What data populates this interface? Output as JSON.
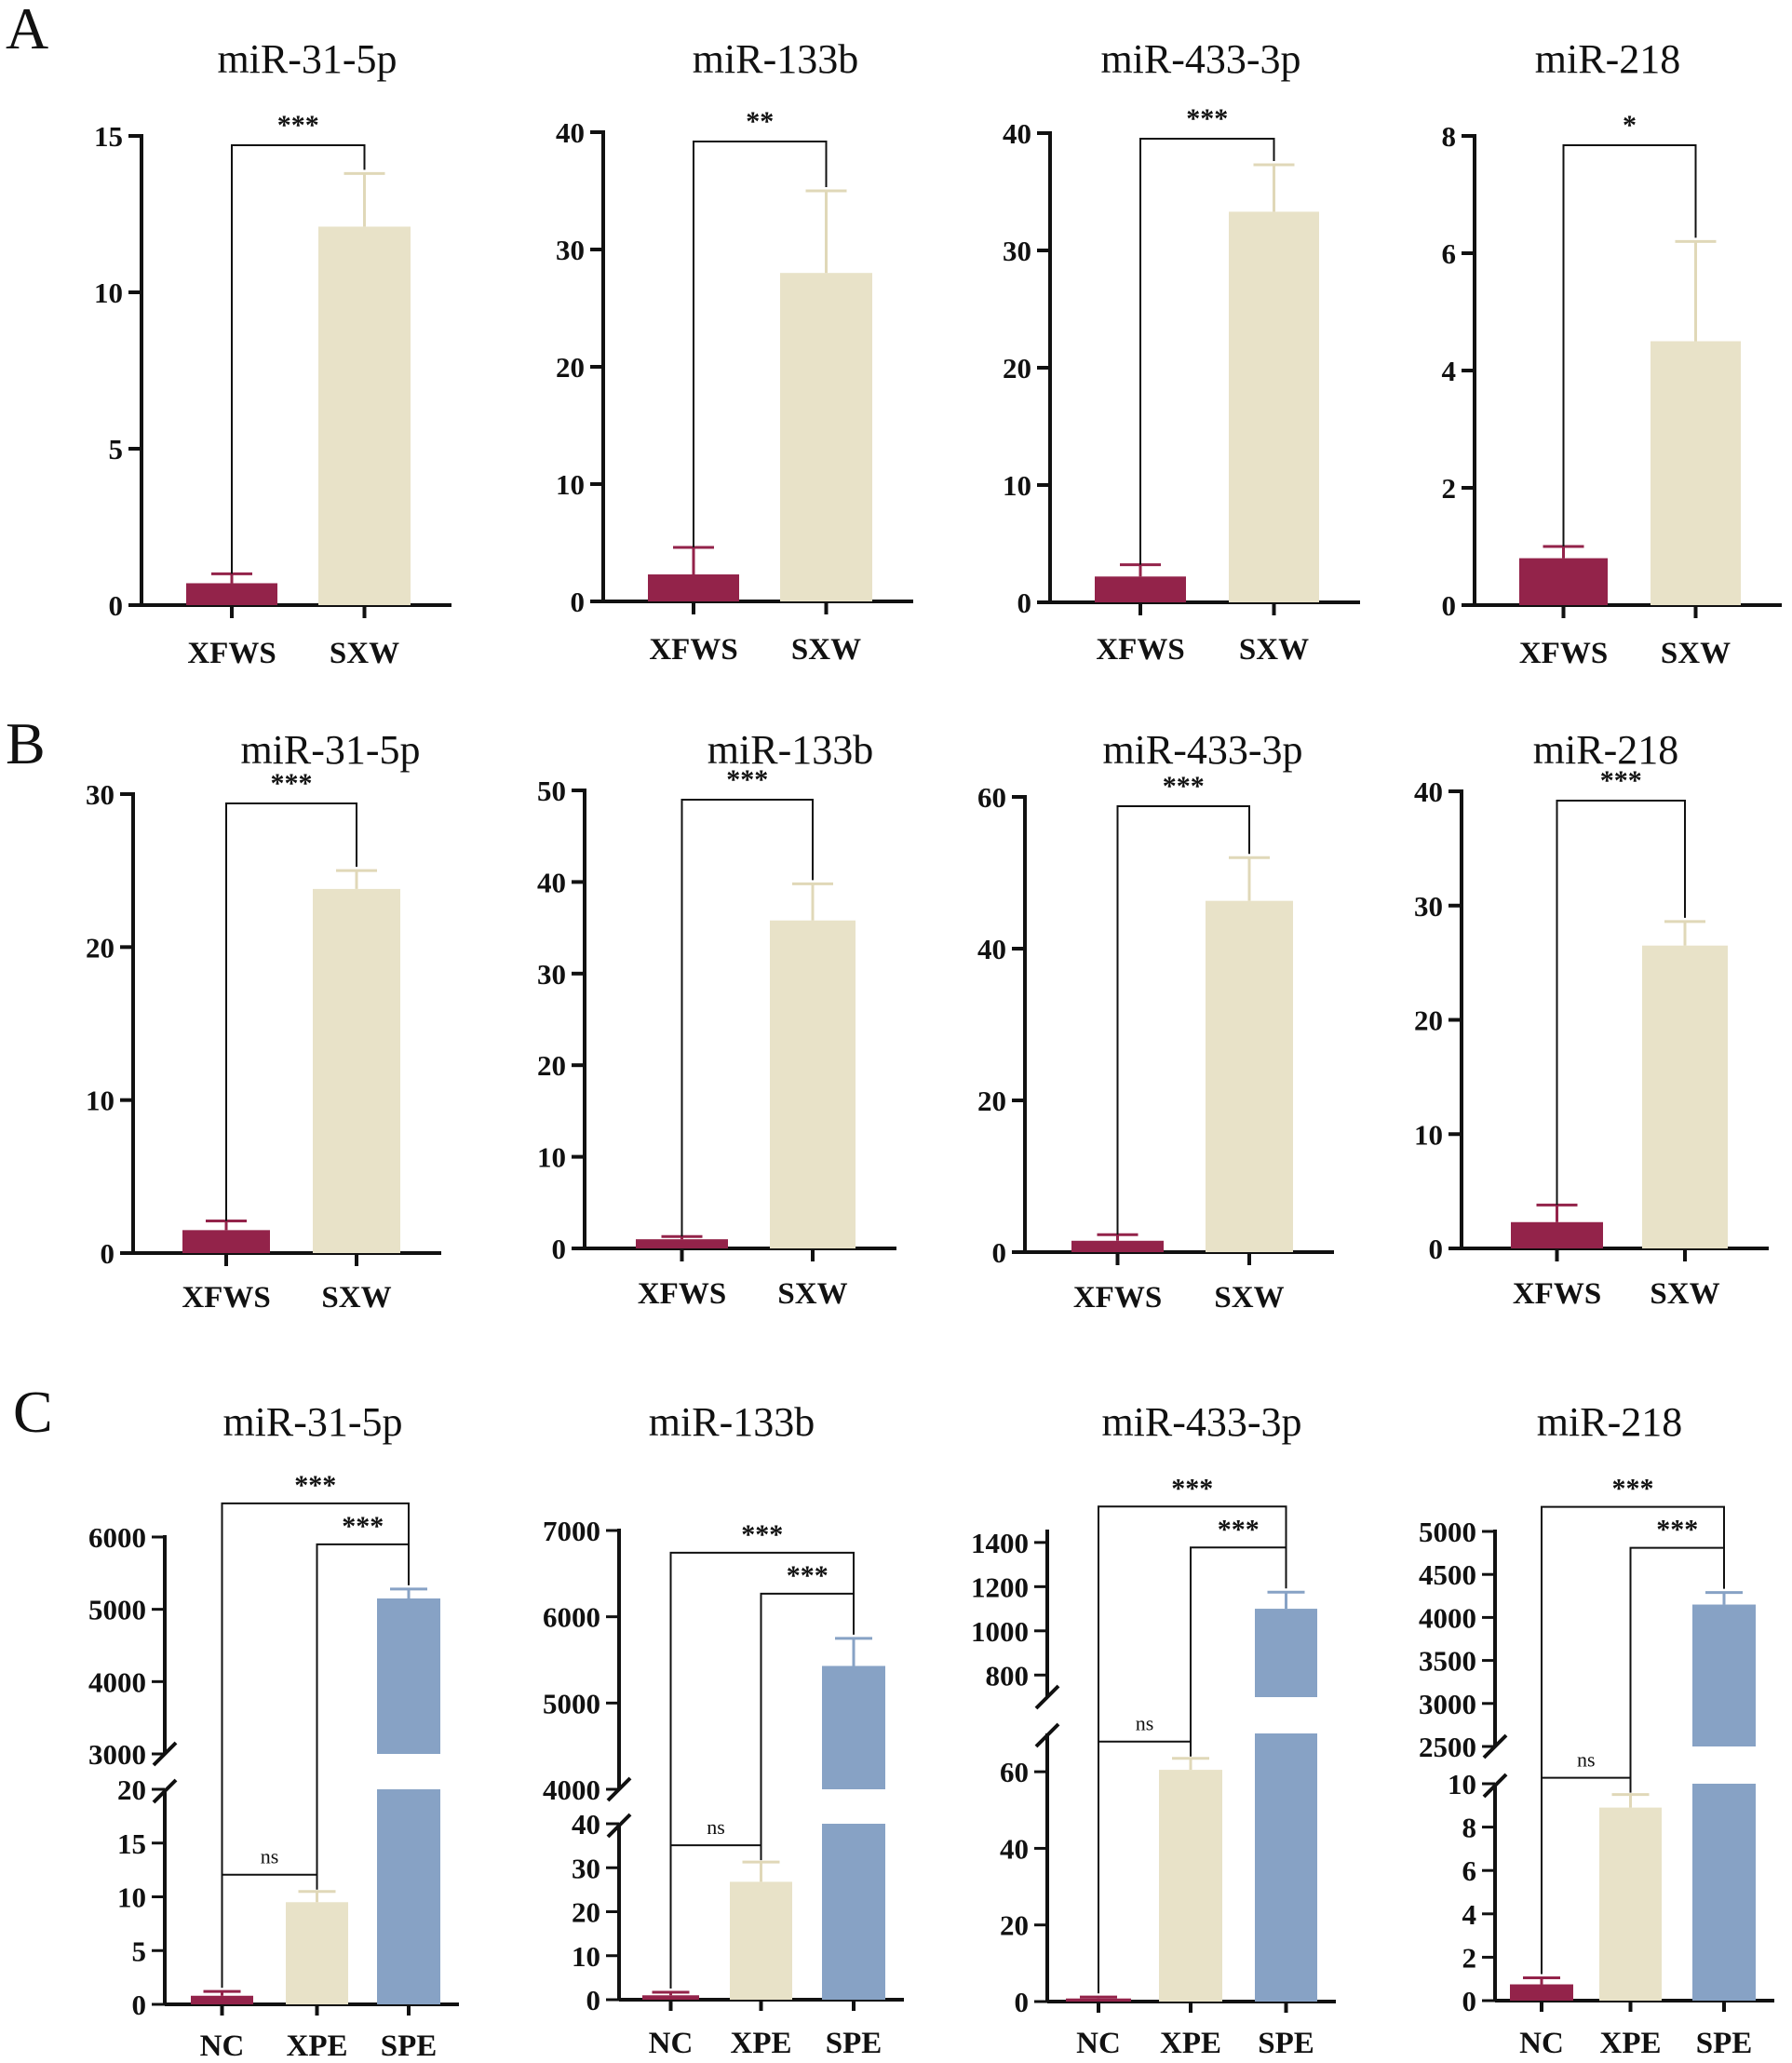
{
  "figure": {
    "panel_labels": [
      "A",
      "B",
      "C"
    ],
    "colors": {
      "XFWS": "#93234a",
      "SXW": "#e8e2c8",
      "NC": "#93234a",
      "XPE": "#e8e2c8",
      "SPE": "#87a2c5",
      "axis": "#111111",
      "err_dark": "#93234a",
      "err_light": "#e0d8b8",
      "err_blue": "#87a2c5"
    }
  },
  "chart_data": [
    {
      "panel": "A",
      "type": "bar",
      "title": "miR-31-5p",
      "categories": [
        "XFWS",
        "SXW"
      ],
      "values": [
        0.7,
        12.1
      ],
      "errors": [
        0.3,
        1.7
      ],
      "ylim": [
        0,
        15
      ],
      "yticks": [
        0,
        5,
        10,
        15
      ],
      "significance": [
        {
          "pair": [
            0,
            1
          ],
          "label": "***"
        }
      ]
    },
    {
      "panel": "A",
      "type": "bar",
      "title": "miR-133b",
      "categories": [
        "XFWS",
        "SXW"
      ],
      "values": [
        2.3,
        28.0
      ],
      "errors": [
        2.3,
        7.0
      ],
      "ylim": [
        0,
        40
      ],
      "yticks": [
        0,
        10,
        20,
        30,
        40
      ],
      "significance": [
        {
          "pair": [
            0,
            1
          ],
          "label": "**"
        }
      ]
    },
    {
      "panel": "A",
      "type": "bar",
      "title": "miR-433-3p",
      "categories": [
        "XFWS",
        "SXW"
      ],
      "values": [
        2.2,
        33.3
      ],
      "errors": [
        1.0,
        4.0
      ],
      "ylim": [
        0,
        40
      ],
      "yticks": [
        0,
        10,
        20,
        30,
        40
      ],
      "significance": [
        {
          "pair": [
            0,
            1
          ],
          "label": "***"
        }
      ]
    },
    {
      "panel": "A",
      "type": "bar",
      "title": "miR-218",
      "categories": [
        "XFWS",
        "SXW"
      ],
      "values": [
        0.8,
        4.5
      ],
      "errors": [
        0.2,
        1.7
      ],
      "ylim": [
        0,
        8
      ],
      "yticks": [
        0,
        2,
        4,
        6,
        8
      ],
      "significance": [
        {
          "pair": [
            0,
            1
          ],
          "label": "*"
        }
      ]
    },
    {
      "panel": "B",
      "type": "bar",
      "title": "miR-31-5p",
      "categories": [
        "XFWS",
        "SXW"
      ],
      "values": [
        1.5,
        23.8
      ],
      "errors": [
        0.6,
        1.2
      ],
      "ylim": [
        0,
        30
      ],
      "yticks": [
        0,
        10,
        20,
        30
      ],
      "significance": [
        {
          "pair": [
            0,
            1
          ],
          "label": "***"
        }
      ]
    },
    {
      "panel": "B",
      "type": "bar",
      "title": "miR-133b",
      "categories": [
        "XFWS",
        "SXW"
      ],
      "values": [
        1.0,
        35.8
      ],
      "errors": [
        0.3,
        4.0
      ],
      "ylim": [
        0,
        50
      ],
      "yticks": [
        0,
        10,
        20,
        30,
        40,
        50
      ],
      "significance": [
        {
          "pair": [
            0,
            1
          ],
          "label": "***"
        }
      ]
    },
    {
      "panel": "B",
      "type": "bar",
      "title": "miR-433-3p",
      "categories": [
        "XFWS",
        "SXW"
      ],
      "values": [
        1.5,
        46.3
      ],
      "errors": [
        0.8,
        5.7
      ],
      "ylim": [
        0,
        60
      ],
      "yticks": [
        0,
        20,
        40,
        60
      ],
      "significance": [
        {
          "pair": [
            0,
            1
          ],
          "label": "***"
        }
      ]
    },
    {
      "panel": "B",
      "type": "bar",
      "title": "miR-218",
      "categories": [
        "XFWS",
        "SXW"
      ],
      "values": [
        2.3,
        26.5
      ],
      "errors": [
        1.5,
        2.1
      ],
      "ylim": [
        0,
        40
      ],
      "yticks": [
        0,
        10,
        20,
        30,
        40
      ],
      "significance": [
        {
          "pair": [
            0,
            1
          ],
          "label": "***"
        }
      ]
    },
    {
      "panel": "C",
      "type": "bar",
      "title": "miR-31-5p",
      "categories": [
        "NC",
        "XPE",
        "SPE"
      ],
      "values": [
        0.8,
        9.5,
        5150
      ],
      "errors": [
        0.4,
        1.0,
        130
      ],
      "broken_axis": {
        "lower": [
          0,
          20
        ],
        "upper": [
          3000,
          6000
        ]
      },
      "yticks_lower": [
        0,
        5,
        10,
        15,
        20
      ],
      "yticks_upper": [
        3000,
        4000,
        5000,
        6000
      ],
      "significance": [
        {
          "pair": [
            0,
            1
          ],
          "label": "ns"
        },
        {
          "pair": [
            1,
            2
          ],
          "label": "***"
        },
        {
          "pair": [
            0,
            2
          ],
          "label": "***"
        }
      ]
    },
    {
      "panel": "C",
      "type": "bar",
      "title": "miR-133b",
      "categories": [
        "NC",
        "XPE",
        "SPE"
      ],
      "values": [
        1.0,
        26.8,
        5430
      ],
      "errors": [
        0.7,
        4.5,
        320
      ],
      "broken_axis": {
        "lower": [
          0,
          40
        ],
        "upper": [
          4000,
          7000
        ]
      },
      "yticks_lower": [
        0,
        10,
        20,
        30,
        40
      ],
      "yticks_upper": [
        4000,
        5000,
        6000,
        7000
      ],
      "significance": [
        {
          "pair": [
            0,
            1
          ],
          "label": "ns"
        },
        {
          "pair": [
            1,
            2
          ],
          "label": "***"
        },
        {
          "pair": [
            0,
            2
          ],
          "label": "***"
        }
      ]
    },
    {
      "panel": "C",
      "type": "bar",
      "title": "miR-433-3p",
      "categories": [
        "NC",
        "XPE",
        "SPE"
      ],
      "values": [
        0.8,
        60.5,
        1100
      ],
      "errors": [
        0.4,
        3.0,
        75
      ],
      "broken_axis": {
        "lower": [
          0,
          70
        ],
        "upper": [
          700,
          1450
        ]
      },
      "yticks_lower": [
        0,
        20,
        40,
        60
      ],
      "yticks_upper": [
        800,
        1000,
        1200,
        1400
      ],
      "significance": [
        {
          "pair": [
            0,
            1
          ],
          "label": "ns"
        },
        {
          "pair": [
            1,
            2
          ],
          "label": "***"
        },
        {
          "pair": [
            0,
            2
          ],
          "label": "***"
        }
      ]
    },
    {
      "panel": "C",
      "type": "bar",
      "title": "miR-218",
      "categories": [
        "NC",
        "XPE",
        "SPE"
      ],
      "values": [
        0.75,
        8.9,
        4150
      ],
      "errors": [
        0.3,
        0.6,
        140
      ],
      "broken_axis": {
        "lower": [
          0,
          10
        ],
        "upper": [
          2500,
          5000
        ]
      },
      "yticks_lower": [
        0,
        2,
        4,
        6,
        8,
        10
      ],
      "yticks_upper": [
        2500,
        3000,
        3500,
        4000,
        4500,
        5000
      ],
      "significance": [
        {
          "pair": [
            0,
            1
          ],
          "label": "ns"
        },
        {
          "pair": [
            1,
            2
          ],
          "label": "***"
        },
        {
          "pair": [
            0,
            2
          ],
          "label": "***"
        }
      ]
    }
  ]
}
